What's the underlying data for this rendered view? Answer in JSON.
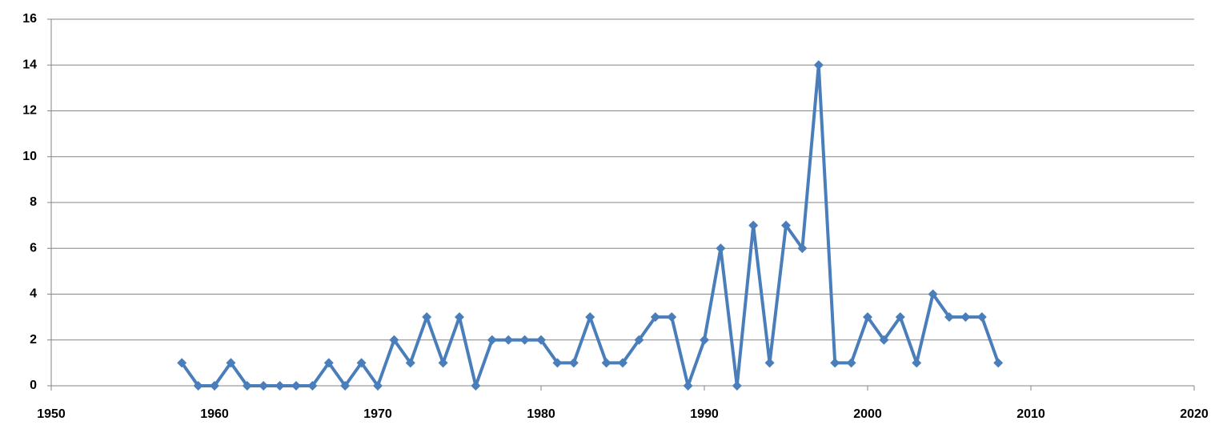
{
  "chart_data": {
    "type": "line",
    "x": [
      1958,
      1959,
      1960,
      1961,
      1962,
      1963,
      1964,
      1965,
      1966,
      1967,
      1968,
      1969,
      1970,
      1971,
      1972,
      1973,
      1974,
      1975,
      1976,
      1977,
      1978,
      1979,
      1980,
      1981,
      1982,
      1983,
      1984,
      1985,
      1986,
      1987,
      1988,
      1989,
      1990,
      1991,
      1992,
      1993,
      1994,
      1995,
      1996,
      1997,
      1998,
      1999,
      2000,
      2001,
      2002,
      2003,
      2004,
      2005,
      2006,
      2007,
      2008
    ],
    "series": [
      {
        "color": "#4a7ebb",
        "values": [
          1,
          0,
          0,
          1,
          0,
          0,
          0,
          0,
          0,
          1,
          0,
          1,
          0,
          2,
          1,
          3,
          1,
          3,
          0,
          2,
          2,
          2,
          2,
          1,
          1,
          3,
          1,
          1,
          2,
          3,
          3,
          0,
          2,
          6,
          0,
          7,
          1,
          7,
          6,
          14,
          1,
          1,
          3,
          2,
          3,
          1,
          4,
          3,
          3,
          3,
          1
        ]
      }
    ],
    "xlim": [
      1950,
      2020
    ],
    "xticks": [
      1950,
      1960,
      1970,
      1980,
      1990,
      2000,
      2010,
      2020
    ],
    "ylim": [
      0,
      16
    ],
    "yticks": [
      0,
      2,
      4,
      6,
      8,
      10,
      12,
      14,
      16
    ],
    "grid": true
  }
}
